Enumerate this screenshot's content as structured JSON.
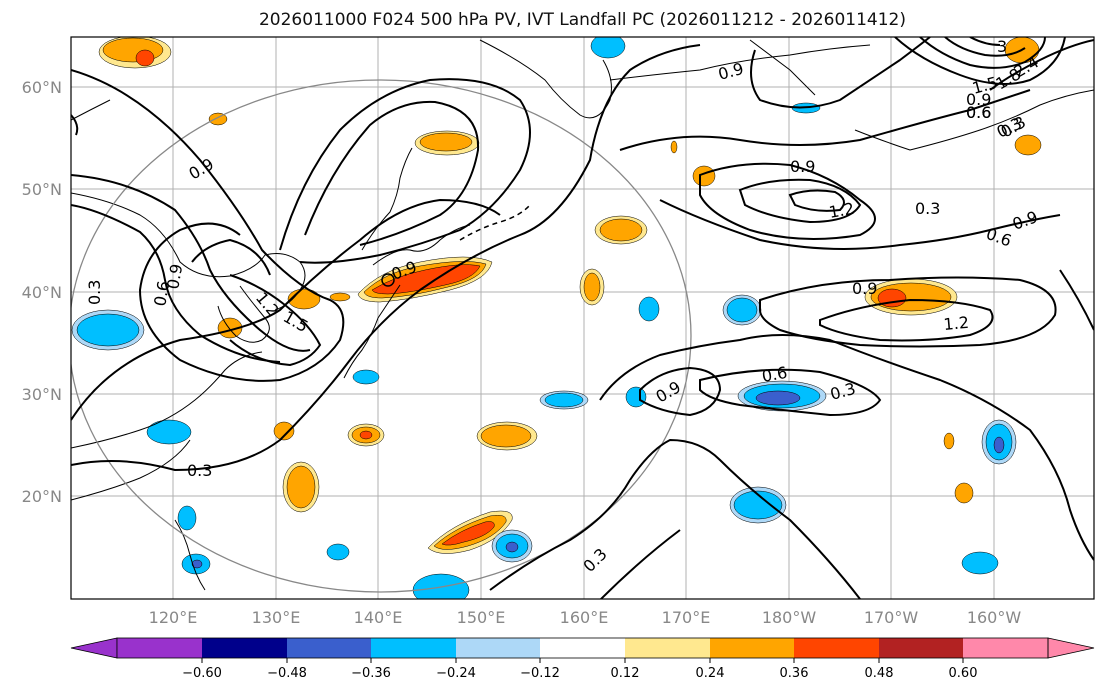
{
  "title": "2026011000 F024 500 hPa PV, IVT Landfall PC (2026011212 - 2026011412)",
  "map": {
    "lon_labels": [
      "120°E",
      "130°E",
      "140°E",
      "150°E",
      "160°E",
      "170°E",
      "180°W",
      "170°W",
      "160°W"
    ],
    "lat_labels": [
      "60°N",
      "50°N",
      "40°N",
      "30°N",
      "20°N"
    ],
    "contour_labels": [
      "0.9",
      "0.3",
      "0.6",
      "0.9",
      "1.2",
      "1.5",
      "0.9",
      "0.9",
      "0.6",
      "0.3",
      "0.9",
      "1.2",
      "0.3",
      "0.6",
      "0.9",
      "0.9",
      "1.2",
      "0.6",
      "0.3",
      "0.9",
      "0.3",
      "0.3",
      "3",
      "2.4",
      "1.8",
      "1.5",
      "0.9",
      "0.6",
      "0.3"
    ]
  },
  "colorbar": {
    "ticks": [
      "−0.60",
      "−0.48",
      "−0.36",
      "−0.24",
      "−0.12",
      "0.12",
      "0.24",
      "0.36",
      "0.48",
      "0.60"
    ],
    "colors": [
      "#9932cc",
      "#00008b",
      "#3a5fcd",
      "#00bfff",
      "#add8f7",
      "#ffffff",
      "#ffe88f",
      "#ffa500",
      "#ff4500",
      "#b22222",
      "#ff88aa"
    ]
  }
}
